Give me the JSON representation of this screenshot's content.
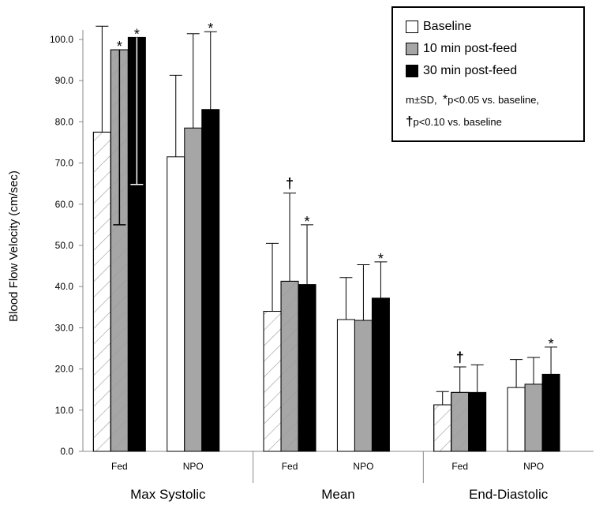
{
  "chart_data": {
    "type": "bar",
    "ylabel": "Blood Flow Velocity (cm/sec)",
    "ylim": [
      0,
      100
    ],
    "ytick_step": 10,
    "ytick_labels": [
      "0.0",
      "10.0",
      "20.0",
      "30.0",
      "40.0",
      "50.0",
      "60.0",
      "70.0",
      "80.0",
      "90.0",
      "100.0"
    ],
    "sections": [
      {
        "label": "Max Systolic",
        "groups": [
          {
            "label": "Fed",
            "hatched": true,
            "values": [
              77.5,
              97.5,
              100.5
            ],
            "sd_top": [
              103.2,
              97.5,
              100.5
            ],
            "sd_bottom": [
              null,
              55,
              64.8
            ],
            "marks": [
              "",
              "*",
              "*"
            ]
          },
          {
            "label": "NPO",
            "hatched": false,
            "values": [
              71.5,
              78.5,
              83.0
            ],
            "sd_top": [
              91.3,
              101.4,
              101.9
            ],
            "sd_bottom": [
              null,
              null,
              null
            ],
            "marks": [
              "",
              "",
              "*"
            ]
          }
        ]
      },
      {
        "label": "Mean",
        "groups": [
          {
            "label": "Fed",
            "hatched": true,
            "values": [
              34.0,
              41.3,
              40.5
            ],
            "sd_top": [
              50.5,
              62.7,
              55.0
            ],
            "sd_bottom": [
              null,
              null,
              null
            ],
            "marks": [
              "",
              "†",
              "*"
            ]
          },
          {
            "label": "NPO",
            "hatched": false,
            "values": [
              32.0,
              31.8,
              37.2
            ],
            "sd_top": [
              42.2,
              45.3,
              46.0
            ],
            "sd_bottom": [
              null,
              null,
              null
            ],
            "marks": [
              "",
              "",
              "*"
            ]
          }
        ]
      },
      {
        "label": "End-Diastolic",
        "groups": [
          {
            "label": "Fed",
            "hatched": true,
            "values": [
              11.3,
              14.3,
              14.3
            ],
            "sd_top": [
              14.5,
              20.5,
              21.0
            ],
            "sd_bottom": [
              null,
              null,
              null
            ],
            "marks": [
              "",
              "†",
              ""
            ]
          },
          {
            "label": "NPO",
            "hatched": false,
            "values": [
              15.5,
              16.3,
              18.7
            ],
            "sd_top": [
              22.3,
              22.8,
              25.3
            ],
            "sd_bottom": [
              null,
              null,
              null
            ],
            "marks": [
              "",
              "",
              "*"
            ]
          }
        ]
      }
    ],
    "series": [
      {
        "name": "Baseline",
        "color": "#ffffff"
      },
      {
        "name": "10 min post-feed",
        "color": "#a6a6a6"
      },
      {
        "name": "30 min post-feed",
        "color": "#000000"
      }
    ],
    "legend": {
      "placement": "top-right",
      "note_line1_prefix": "m±SD,",
      "note_line1_mark": "*",
      "note_line1_text": "p<0.05 vs. baseline,",
      "note_line2_mark": "†",
      "note_line2_text": "p<0.10 vs. baseline"
    }
  }
}
